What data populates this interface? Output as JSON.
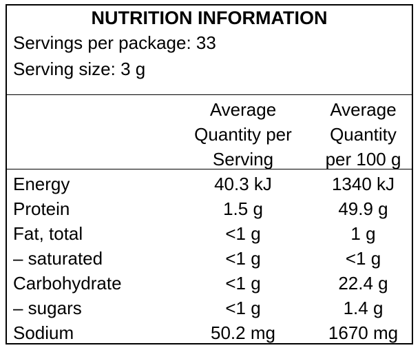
{
  "panel": {
    "title": "NUTRITION INFORMATION",
    "servings_per_package": "Servings per package: 33",
    "serving_size": "Serving size: 3 g"
  },
  "columns": {
    "per_serving": [
      "Average",
      "Quantity per",
      "Serving"
    ],
    "per_100g": [
      "Average",
      "Quantity",
      "per 100 g"
    ]
  },
  "rows": [
    {
      "label": "Energy",
      "per_serving": "40.3 kJ",
      "per_100g": "1340 kJ"
    },
    {
      "label": "Protein",
      "per_serving": "1.5 g",
      "per_100g": "49.9 g"
    },
    {
      "label": "Fat, total",
      "per_serving": "<1 g",
      "per_100g": "1 g"
    },
    {
      "label": "– saturated",
      "per_serving": "<1 g",
      "per_100g": "<1 g"
    },
    {
      "label": "Carbohydrate",
      "per_serving": "<1 g",
      "per_100g": "22.4 g"
    },
    {
      "label": " – sugars",
      "per_serving": "<1 g",
      "per_100g": "1.4 g"
    },
    {
      "label": "Sodium",
      "per_serving": "50.2 mg",
      "per_100g": "1670 mg"
    }
  ]
}
